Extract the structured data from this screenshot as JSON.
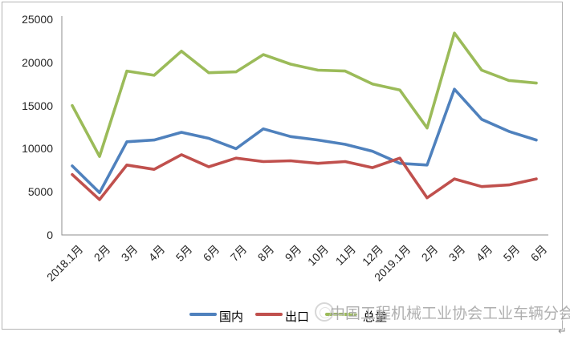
{
  "page": {
    "return_mark": "↵"
  },
  "watermark": {
    "text": "中国工程机械工业协会工业车辆分会",
    "logo_icon": "circular-seal-icon",
    "color": "#9c9c9c"
  },
  "legend": [
    {
      "label": "国内",
      "color": "#4F81BD"
    },
    {
      "label": "出口",
      "color": "#C0504D"
    },
    {
      "label": "总量",
      "color": "#9BBB59"
    }
  ],
  "chart_data": {
    "type": "line",
    "title": "",
    "xlabel": "",
    "ylabel": "",
    "grid": false,
    "legend_position": "bottom",
    "ylim": [
      0,
      25000
    ],
    "yticks": [
      0,
      5000,
      10000,
      15000,
      20000,
      25000
    ],
    "categories": [
      "2018.1月",
      "2月",
      "3月",
      "4月",
      "5月",
      "6月",
      "7月",
      "8月",
      "9月",
      "10月",
      "11月",
      "12月",
      "2019.1月",
      "2月",
      "3月",
      "4月",
      "5月",
      "6月"
    ],
    "series": [
      {
        "name": "国内",
        "color": "#4F81BD",
        "values": [
          8000,
          4900,
          10800,
          11000,
          11900,
          11200,
          10000,
          12300,
          11400,
          11000,
          10500,
          9700,
          8300,
          8100,
          16900,
          13400,
          12000,
          11000
        ]
      },
      {
        "name": "出口",
        "color": "#C0504D",
        "values": [
          7000,
          4100,
          8100,
          7600,
          9300,
          7900,
          8900,
          8500,
          8600,
          8300,
          8500,
          7800,
          8900,
          4300,
          6500,
          5600,
          5800,
          6500
        ]
      },
      {
        "name": "总量",
        "color": "#9BBB59",
        "values": [
          15000,
          9100,
          19000,
          18500,
          21300,
          18800,
          18900,
          20900,
          19800,
          19100,
          19000,
          17500,
          16800,
          12400,
          23400,
          19100,
          17900,
          17600
        ]
      }
    ]
  }
}
